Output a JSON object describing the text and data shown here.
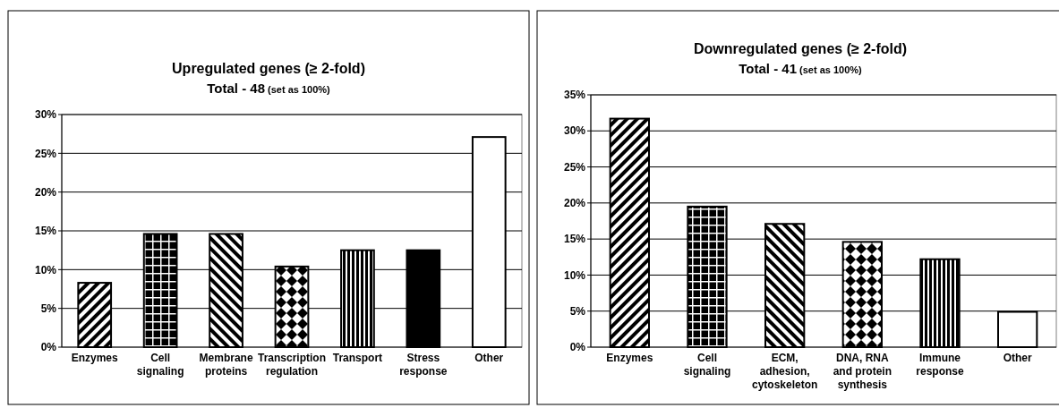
{
  "chart_data": [
    {
      "type": "bar",
      "title": "Upregulated genes (≥ 2-fold)",
      "subtitle": "Total - 48 (set as 100%)",
      "categories": [
        "Enzymes",
        "Cell signaling",
        "Membrane proteins",
        "Transcription regulation",
        "Transport",
        "Stress response",
        "Other"
      ],
      "values": [
        8.3,
        14.6,
        14.6,
        10.4,
        12.5,
        12.5,
        27.1
      ],
      "colors": [
        "#000000",
        "#000000",
        "#000000",
        "#000000",
        "#000000",
        "#000000",
        "#ffffff"
      ],
      "ylim": [
        0,
        30
      ],
      "yticks": [
        {
          "value": 0,
          "label": "0%"
        },
        {
          "value": 5,
          "label": "5%"
        },
        {
          "value": 10,
          "label": "10%"
        },
        {
          "value": 15,
          "label": "15%"
        },
        {
          "value": 20,
          "label": "20%"
        },
        {
          "value": 25,
          "label": "25%"
        },
        {
          "value": 30,
          "label": "30%"
        }
      ],
      "grid": "y"
    },
    {
      "type": "bar",
      "title": "Downregulated genes (≥ 2-fold)",
      "subtitle": "Total - 41 (set as 100%)",
      "categories": [
        "Enzymes",
        "Cell signaling",
        "ECM, adhesion, cytoskeleton",
        "DNA, RNA and protein synthesis",
        "Immune response",
        "Other"
      ],
      "values": [
        31.7,
        19.5,
        17.1,
        14.6,
        12.2,
        4.9
      ],
      "colors": [
        "#000000",
        "#000000",
        "#000000",
        "#000000",
        "#000000",
        "#ffffff"
      ],
      "ylim": [
        0,
        35
      ],
      "yticks": [
        {
          "value": 0,
          "label": "0%"
        },
        {
          "value": 5,
          "label": "5%"
        },
        {
          "value": 10,
          "label": "10%"
        },
        {
          "value": 15,
          "label": "15%"
        },
        {
          "value": 20,
          "label": "20%"
        },
        {
          "value": 25,
          "label": "25%"
        },
        {
          "value": 30,
          "label": "30%"
        },
        {
          "value": 35,
          "label": "35%"
        }
      ],
      "grid": "y"
    }
  ]
}
